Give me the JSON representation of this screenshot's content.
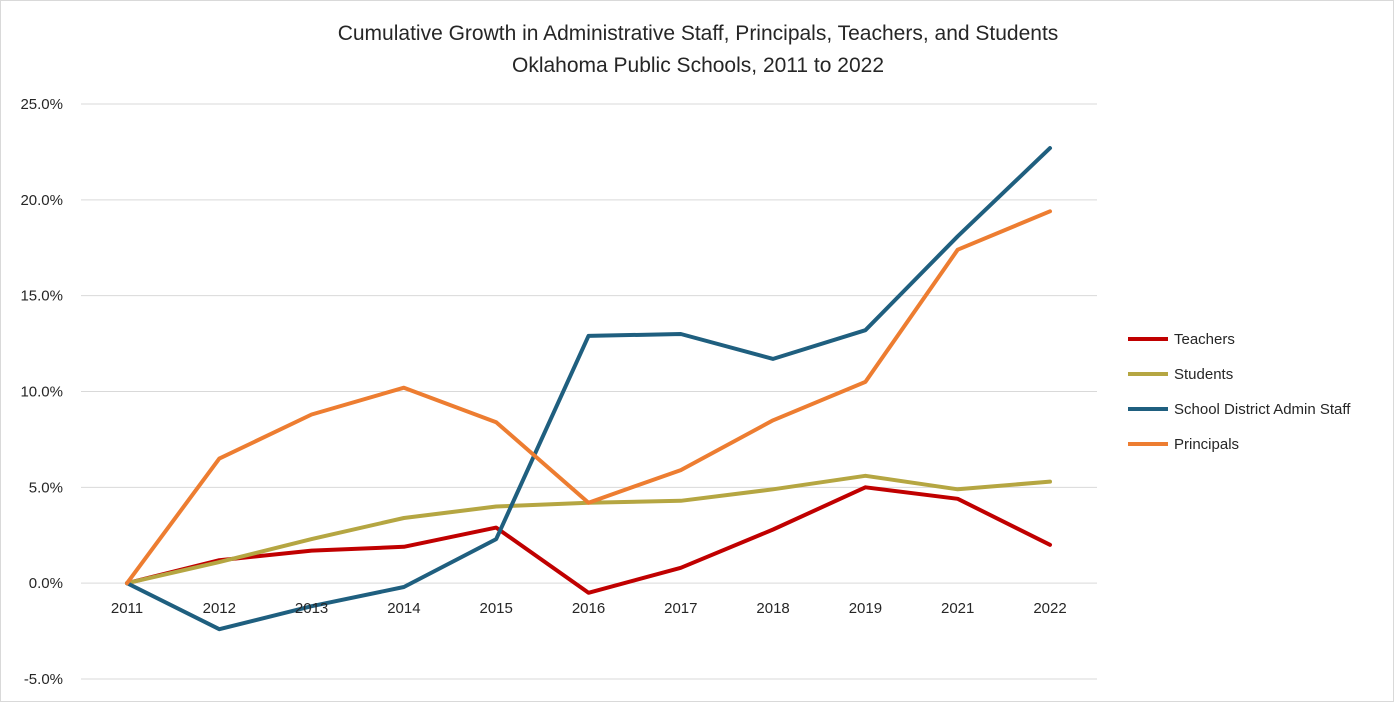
{
  "chart_data": {
    "type": "line",
    "title": "Cumulative Growth in Administrative Staff, Principals, Teachers, and Students",
    "subtitle": "Oklahoma Public Schools, 2011 to 2022",
    "xlabel": "",
    "ylabel": "",
    "categories": [
      "2011",
      "2012",
      "2013",
      "2014",
      "2015",
      "2016",
      "2017",
      "2018",
      "2019",
      "2021",
      "2022"
    ],
    "ylim": [
      -5,
      25
    ],
    "yticks": [
      25,
      20,
      15,
      10,
      5,
      0,
      -5
    ],
    "ytick_labels": [
      "25.0%",
      "20.0%",
      "15.0%",
      "10.0%",
      "5.0%",
      "0.0%",
      "-5.0%"
    ],
    "grid": true,
    "legend_position": "right",
    "series": [
      {
        "name": "Teachers",
        "color": "#C00000",
        "values": [
          0,
          1.2,
          1.7,
          1.9,
          2.9,
          -0.5,
          0.8,
          2.8,
          5.0,
          4.4,
          2.0
        ]
      },
      {
        "name": "Students",
        "color": "#B5A642",
        "values": [
          0,
          1.1,
          2.3,
          3.4,
          4.0,
          4.2,
          4.3,
          4.9,
          5.6,
          4.9,
          5.3
        ]
      },
      {
        "name": "School District Admin Staff",
        "color": "#1F5F7F",
        "values": [
          0,
          -2.4,
          -1.2,
          -0.2,
          2.3,
          12.9,
          13.0,
          11.7,
          13.2,
          18.1,
          22.7
        ]
      },
      {
        "name": "Principals",
        "color": "#ED7D31",
        "values": [
          0,
          6.5,
          8.8,
          10.2,
          8.4,
          4.2,
          5.9,
          8.5,
          10.5,
          17.4,
          19.4
        ]
      }
    ]
  }
}
